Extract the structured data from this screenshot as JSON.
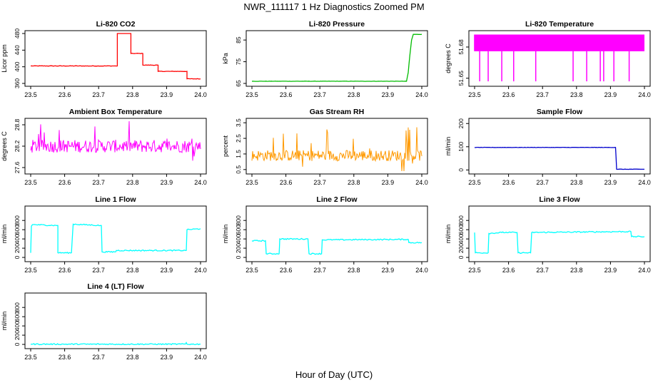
{
  "figure": {
    "title": "NWR_111117  1 Hz Diagnostics Zoomed PM",
    "xlabel": "Hour of Day (UTC)"
  },
  "chart_data": [
    {
      "type": "line",
      "title": "Li-820 CO2",
      "ylabel": "Licor ppm",
      "color": "#ff0000",
      "xlim": [
        23.5,
        24.0
      ],
      "ylim": [
        360,
        480
      ],
      "yticks": [
        360,
        400,
        440,
        480
      ],
      "xticks": [
        23.5,
        23.6,
        23.7,
        23.8,
        23.9,
        24.0
      ],
      "series": [
        {
          "name": "CO2",
          "x": [
            23.5,
            23.755,
            23.755,
            23.795,
            23.795,
            23.83,
            23.83,
            23.875,
            23.875,
            23.96,
            23.96,
            24.0
          ],
          "y": [
            402,
            402,
            481,
            481,
            432,
            432,
            404,
            404,
            389,
            389,
            371,
            371
          ]
        }
      ]
    },
    {
      "type": "line",
      "title": "Li-820 Pressure",
      "ylabel": "kPa",
      "color": "#00bb00",
      "xlim": [
        23.5,
        24.0
      ],
      "ylim": [
        65,
        88
      ],
      "yticks": [
        65,
        75,
        85
      ],
      "xticks": [
        23.5,
        23.6,
        23.7,
        23.8,
        23.9,
        24.0
      ],
      "series": [
        {
          "name": "Pressure",
          "x": [
            23.5,
            23.955,
            23.96,
            23.965,
            23.97,
            23.975,
            23.98,
            24.0
          ],
          "y": [
            66.0,
            66.0,
            70,
            78,
            85,
            87.6,
            87.6,
            87.6
          ]
        }
      ]
    },
    {
      "type": "line",
      "title": "Li-820 Temperature",
      "ylabel": "degrees C",
      "color": "#ff00ff",
      "xlim": [
        23.5,
        24.0
      ],
      "ylim": [
        51.645,
        51.693
      ],
      "yticks": [
        51.65,
        51.68
      ],
      "xticks": [
        23.5,
        23.6,
        23.7,
        23.8,
        23.9,
        24.0
      ],
      "series": [
        {
          "name": "Temperature",
          "x": [
            23.5,
            24.0
          ],
          "y": [
            51.676,
            51.693
          ],
          "dips": [
            23.515,
            23.54,
            23.58,
            23.615,
            23.68,
            23.79,
            23.83,
            23.87,
            23.88,
            23.91,
            23.955
          ]
        }
      ]
    },
    {
      "type": "line",
      "title": "Ambient Box Temperature",
      "ylabel": "degrees C",
      "color": "#ff00ff",
      "xlim": [
        23.5,
        24.0
      ],
      "ylim": [
        27.5,
        28.9
      ],
      "yticks": [
        27.6,
        28.2,
        28.8
      ],
      "xticks": [
        23.5,
        23.6,
        23.7,
        23.8,
        23.9,
        24.0
      ],
      "series": [
        {
          "name": "Ambient",
          "x": [
            23.5,
            24.0
          ],
          "y": [
            28.2,
            28.15
          ]
        }
      ]
    },
    {
      "type": "line",
      "title": "Gas Stream RH",
      "ylabel": "percent",
      "color": "#ff9900",
      "xlim": [
        23.5,
        24.0
      ],
      "ylim": [
        0.4,
        3.6
      ],
      "yticks": [
        0.5,
        1.5,
        2.5,
        3.5
      ],
      "xticks": [
        23.5,
        23.6,
        23.7,
        23.8,
        23.9,
        24.0
      ],
      "series": [
        {
          "name": "RH",
          "x": [
            23.5,
            24.0
          ],
          "y": [
            1.4,
            1.4
          ]
        }
      ]
    },
    {
      "type": "line",
      "title": "Sample Flow",
      "ylabel": "ml/min",
      "color": "#0000cc",
      "xlim": [
        23.5,
        24.0
      ],
      "ylim": [
        -5,
        210
      ],
      "yticks": [
        0,
        100,
        200
      ],
      "xticks": [
        23.5,
        23.6,
        23.7,
        23.8,
        23.9,
        24.0
      ],
      "series": [
        {
          "name": "Sample",
          "x": [
            23.5,
            23.915,
            23.918,
            24.0
          ],
          "y": [
            97,
            97,
            3,
            3
          ]
        }
      ]
    },
    {
      "type": "line",
      "title": "Line 1 Flow",
      "ylabel": "ml/min",
      "color": "#00ffff",
      "xlim": [
        23.5,
        24.0
      ],
      "ylim": [
        -30,
        1050
      ],
      "yticks": [
        0,
        200,
        400,
        600,
        800
      ],
      "xticks": [
        23.5,
        23.6,
        23.7,
        23.8,
        23.9,
        24.0
      ],
      "series": [
        {
          "name": "Line 1",
          "x": [
            23.5,
            23.502,
            23.505,
            23.58,
            23.58,
            23.62,
            23.625,
            23.708,
            23.71,
            23.75,
            23.752,
            23.958,
            23.96,
            24.0
          ],
          "y": [
            100,
            680,
            710,
            690,
            100,
            100,
            720,
            690,
            120,
            120,
            150,
            150,
            600,
            620
          ]
        }
      ]
    },
    {
      "type": "line",
      "title": "Line 2 Flow",
      "ylabel": "ml/min",
      "color": "#00ffff",
      "xlim": [
        23.5,
        24.0
      ],
      "ylim": [
        -30,
        1050
      ],
      "yticks": [
        0,
        200,
        400,
        600,
        800
      ],
      "xticks": [
        23.5,
        23.6,
        23.7,
        23.8,
        23.9,
        24.0
      ],
      "series": [
        {
          "name": "Line 2",
          "x": [
            23.5,
            23.54,
            23.542,
            23.58,
            23.582,
            23.665,
            23.668,
            23.705,
            23.707,
            23.96,
            23.962,
            24.0
          ],
          "y": [
            360,
            360,
            80,
            80,
            400,
            400,
            80,
            80,
            380,
            390,
            320,
            320
          ]
        }
      ]
    },
    {
      "type": "line",
      "title": "Line 3 Flow",
      "ylabel": "ml/min",
      "color": "#00ffff",
      "xlim": [
        23.5,
        24.0
      ],
      "ylim": [
        -30,
        1050
      ],
      "yticks": [
        0,
        200,
        400,
        600,
        800
      ],
      "xticks": [
        23.5,
        23.6,
        23.7,
        23.8,
        23.9,
        24.0
      ],
      "series": [
        {
          "name": "Line 3",
          "x": [
            23.5,
            23.502,
            23.54,
            23.542,
            23.58,
            23.625,
            23.628,
            23.665,
            23.668,
            23.96,
            23.962,
            24.0
          ],
          "y": [
            540,
            100,
            100,
            520,
            540,
            540,
            100,
            100,
            540,
            560,
            450,
            450
          ]
        }
      ]
    },
    {
      "type": "line",
      "title": "Line 4 (LT) Flow",
      "ylabel": "ml/min",
      "color": "#00ffff",
      "xlim": [
        23.5,
        24.0
      ],
      "ylim": [
        -30,
        1050
      ],
      "yticks": [
        0,
        200,
        400,
        600,
        800
      ],
      "xticks": [
        23.5,
        23.6,
        23.7,
        23.8,
        23.9,
        24.0
      ],
      "series": [
        {
          "name": "Line 4",
          "x": [
            23.5,
            23.955,
            23.958,
            23.96,
            24.0
          ],
          "y": [
            5,
            5,
            40,
            5,
            5
          ]
        }
      ]
    }
  ]
}
